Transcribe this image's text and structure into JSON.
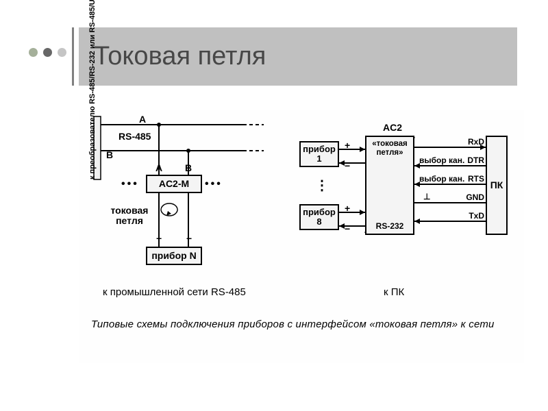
{
  "title": "Токовая петля",
  "bullets": {
    "colors": [
      "#a5b09a",
      "#676767",
      "#c5c5c5"
    ]
  },
  "left_diagram": {
    "converter_label": "к преобразователю RS-485/RS-232 или RS-485/USB",
    "bus_label": "RS-485",
    "line_a": "A",
    "line_b": "B",
    "pin_a": "A",
    "pin_b": "B",
    "adapter": "AC2-M",
    "loop_label": "токовая\nпетля",
    "plus": "+",
    "minus": "−",
    "device": "прибор N",
    "dots": "•••",
    "caption": "к промышленной сети RS-485"
  },
  "right_diagram": {
    "device1": "прибор\n1",
    "device8": "прибор\n8",
    "vdots": "⋮",
    "plus": "+",
    "minus": "−",
    "ac2_top_label": "AC2",
    "ac2_box_top": "«токовая\nпетля»",
    "ac2_box_bot": "RS-232",
    "signals": {
      "rxd": "RxD",
      "dtr": "DTR",
      "rts": "RTS",
      "gnd": "GND",
      "txd": "TxD",
      "sel": "выбор кан.",
      "perp": "⊥"
    },
    "pc": "ПК",
    "caption": "к ПК"
  },
  "main_caption": "Типовые схемы подключения приборов с интерфейсом «токовая петля» к сети",
  "colors": {
    "title_bg": "#c0c0c0",
    "title_fg": "#474747",
    "line": "#000000",
    "box_bg": "#f4f4f4"
  }
}
